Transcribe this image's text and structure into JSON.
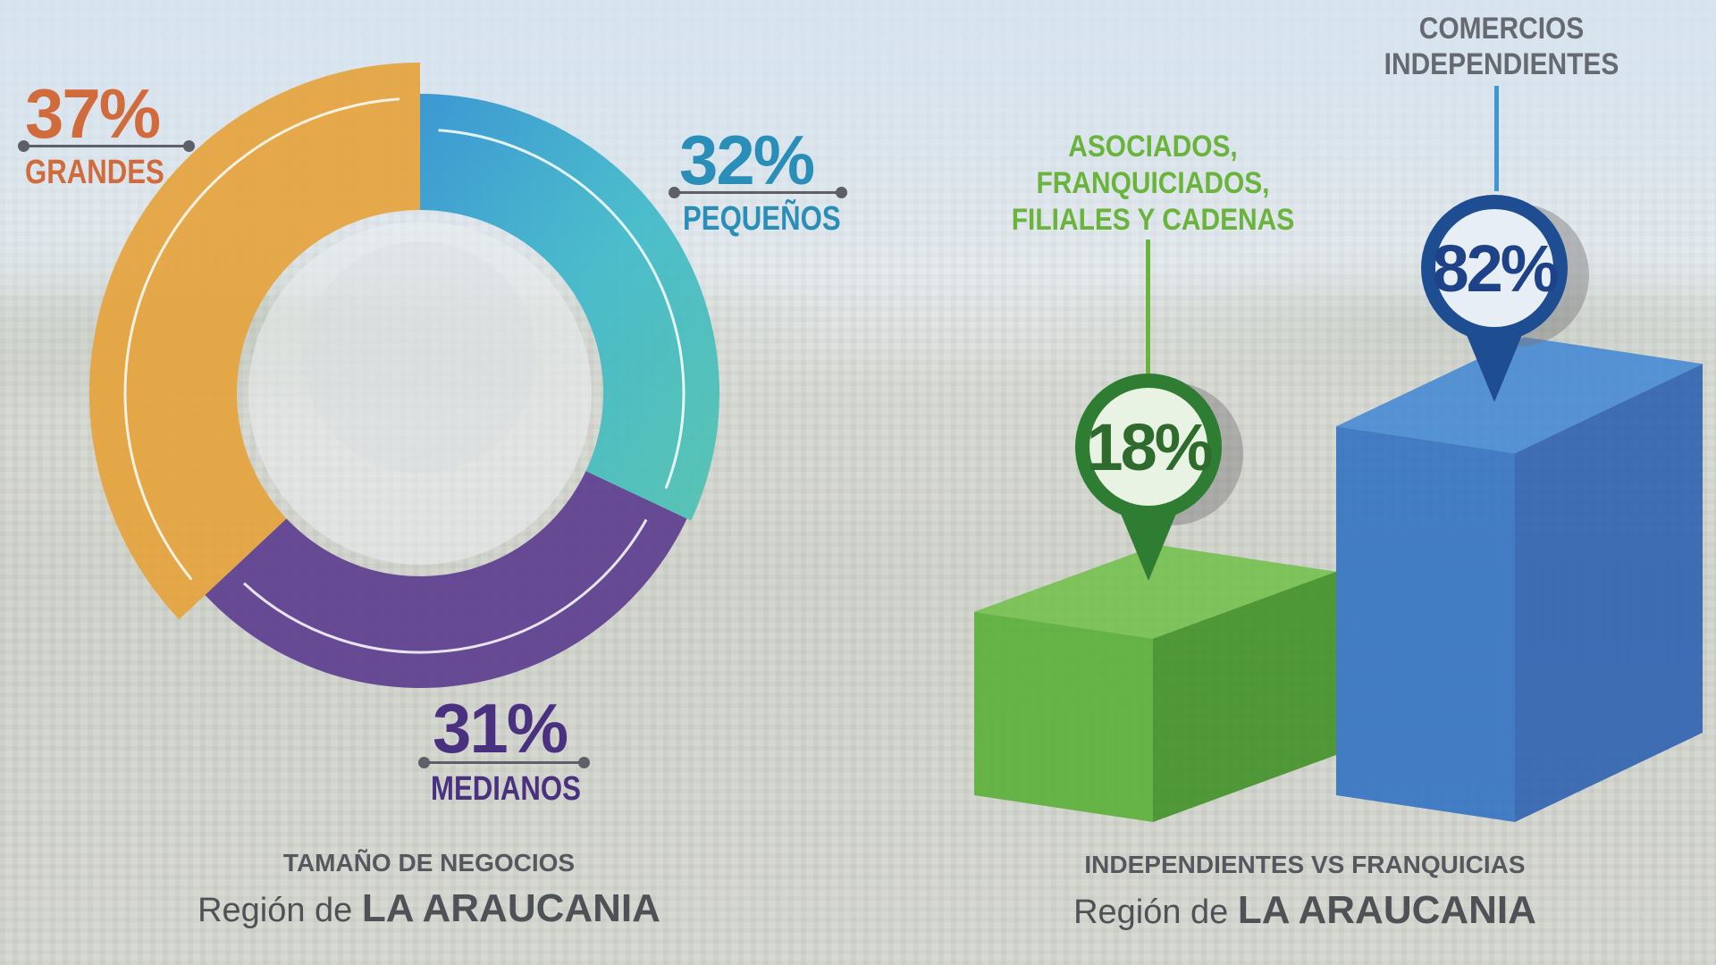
{
  "chart_data": [
    {
      "type": "pie",
      "categories": [
        "GRANDES",
        "PEQUEÑOS",
        "MEDIANOS"
      ],
      "values": [
        37,
        32,
        31
      ],
      "value_labels": [
        "37%",
        "32%",
        "31%"
      ],
      "colors": [
        "#e5a23a",
        "#3fb5c3",
        "#5b3b8e"
      ],
      "label_colors": [
        "#d16b3c",
        "#2a8fb8",
        "#4a3180"
      ],
      "caption": "TAMAÑO DE NEGOCIOS",
      "subtitle_prefix": "Región de",
      "subtitle_region": "LA ARAUCANIA"
    },
    {
      "type": "bar",
      "categories": [
        "ASOCIADOS, FRANQUICIADOS, FILIALES Y CADENAS",
        "COMERCIOS INDEPENDIENTES"
      ],
      "category_lines": [
        [
          "ASOCIADOS,",
          "FRANQUICIADOS,",
          "FILIALES Y CADENAS"
        ],
        [
          "COMERCIOS",
          "INDEPENDIENTES"
        ]
      ],
      "values": [
        18,
        82
      ],
      "value_labels": [
        "18%",
        "82%"
      ],
      "colors": [
        "#4aa42d",
        "#2a6fc0"
      ],
      "caption": "INDEPENDIENTES VS FRANQUICIAS",
      "subtitle_prefix": "Región de",
      "subtitle_region": "LA ARAUCANIA"
    }
  ]
}
